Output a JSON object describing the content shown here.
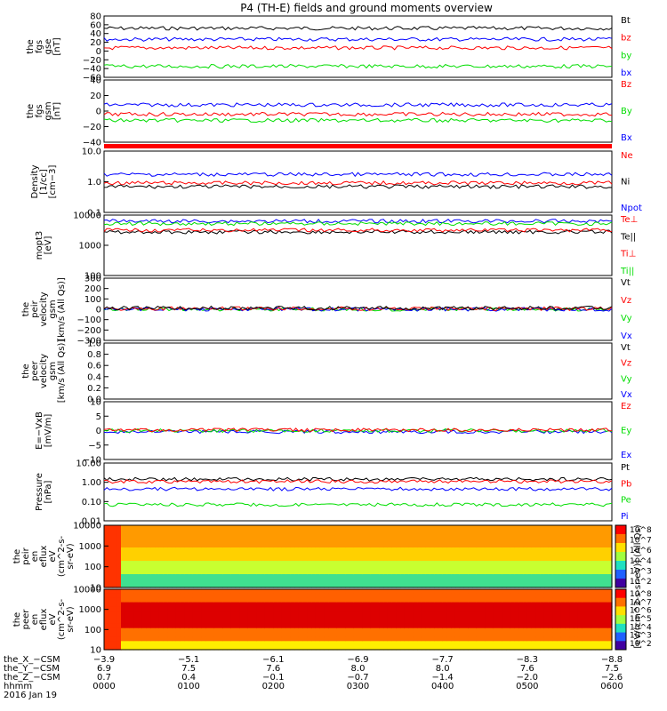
{
  "title": "P4 (TH-E) fields and ground moments overview",
  "colors": {
    "black": "#000000",
    "red": "#ff0000",
    "green": "#00dd00",
    "blue": "#0000ff"
  },
  "chart_data": [
    {
      "type": "line",
      "ylabel": [
        "the",
        "fgs",
        "gse",
        "[nT]"
      ],
      "yticks": [
        "80",
        "60",
        "40",
        "20",
        "0",
        "−20",
        "−40",
        "−60"
      ],
      "legend": [
        {
          "name": "Bt",
          "color": "black"
        },
        {
          "name": "bz",
          "color": "red"
        },
        {
          "name": "by",
          "color": "green"
        },
        {
          "name": "bx",
          "color": "blue"
        }
      ],
      "series": [
        {
          "color": "black",
          "level": 0.2
        },
        {
          "color": "blue",
          "level": 0.38
        },
        {
          "color": "red",
          "level": 0.52
        },
        {
          "color": "green",
          "level": 0.82
        }
      ]
    },
    {
      "type": "line",
      "ylabel": [
        "the",
        "fgs",
        "gsm",
        "[nT]"
      ],
      "yticks": [
        "40",
        "20",
        "0",
        "−20",
        "−40"
      ],
      "legend": [
        {
          "name": "Bz",
          "color": "red"
        },
        {
          "name": "By",
          "color": "green"
        },
        {
          "name": "Bx",
          "color": "blue"
        }
      ],
      "series": [
        {
          "color": "blue",
          "level": 0.4
        },
        {
          "color": "red",
          "level": 0.55
        },
        {
          "color": "green",
          "level": 0.65
        }
      ]
    },
    {
      "type": "line",
      "ylabel": [
        "Density",
        "[1/cc]",
        "[cm−3]"
      ],
      "yticks": [
        "10.0",
        "1.0",
        "0.1"
      ],
      "legend": [
        {
          "name": "Ne",
          "color": "red"
        },
        {
          "name": "Ni",
          "color": "black"
        },
        {
          "name": "Npot",
          "color": "blue"
        }
      ],
      "series": [
        {
          "color": "blue",
          "level": 0.38
        },
        {
          "color": "red",
          "level": 0.52
        },
        {
          "color": "black",
          "level": 0.58
        }
      ]
    },
    {
      "type": "line",
      "ylabel": [
        "mopt3",
        "[eV]"
      ],
      "yticks": [
        "10000",
        "1000",
        "100"
      ],
      "legend": [
        {
          "name": "Te⊥",
          "color": "red"
        },
        {
          "name": "Te||",
          "color": "black"
        },
        {
          "name": "Ti⊥",
          "color": "red"
        },
        {
          "name": "Ti||",
          "color": "green"
        }
      ],
      "series": [
        {
          "color": "blue",
          "level": 0.1
        },
        {
          "color": "green",
          "level": 0.14
        },
        {
          "color": "black",
          "level": 0.28
        },
        {
          "color": "red",
          "level": 0.25
        }
      ]
    },
    {
      "type": "line",
      "ylabel": [
        "the",
        "peir",
        "velocity",
        "gsm",
        "[km/s (All Qs)]"
      ],
      "yticks": [
        "300",
        "200",
        "100",
        "0",
        "−100",
        "−200",
        "−300"
      ],
      "legend": [
        {
          "name": "Vt",
          "color": "black"
        },
        {
          "name": "Vz",
          "color": "red"
        },
        {
          "name": "Vy",
          "color": "green"
        },
        {
          "name": "Vx",
          "color": "blue"
        }
      ],
      "series": [
        {
          "color": "green",
          "level": 0.5
        },
        {
          "color": "blue",
          "level": 0.5
        },
        {
          "color": "red",
          "level": 0.49
        },
        {
          "color": "black",
          "level": 0.48
        }
      ]
    },
    {
      "type": "line",
      "ylabel": [
        "the",
        "peer",
        "velocity",
        "gsm",
        "[km/s (All Qs)]"
      ],
      "yticks": [
        "1.0",
        "0.8",
        "0.6",
        "0.4",
        "0.2",
        "0.0"
      ],
      "legend": [
        {
          "name": "Vt",
          "color": "black"
        },
        {
          "name": "Vz",
          "color": "red"
        },
        {
          "name": "Vy",
          "color": "green"
        },
        {
          "name": "Vx",
          "color": "blue"
        }
      ],
      "series": []
    },
    {
      "type": "line",
      "ylabel": [
        "E=−VxB",
        "[mV/m]"
      ],
      "yticks": [
        "10",
        "5",
        "0",
        "−5",
        "−10"
      ],
      "legend": [
        {
          "name": "Ez",
          "color": "red"
        },
        {
          "name": "Ey",
          "color": "green"
        },
        {
          "name": "Ex",
          "color": "blue"
        }
      ],
      "series": [
        {
          "color": "blue",
          "level": 0.52
        },
        {
          "color": "green",
          "level": 0.5
        },
        {
          "color": "red",
          "level": 0.49
        }
      ]
    },
    {
      "type": "line",
      "ylabel": [
        "Pressure",
        "[nPa]"
      ],
      "yticks": [
        "10.00",
        "1.00",
        "0.10",
        "0.01"
      ],
      "legend": [
        {
          "name": "Pt",
          "color": "black"
        },
        {
          "name": "Pb",
          "color": "red"
        },
        {
          "name": "Pe",
          "color": "green"
        },
        {
          "name": "Pi",
          "color": "blue"
        }
      ],
      "series": [
        {
          "color": "black",
          "level": 0.28
        },
        {
          "color": "red",
          "level": 0.32
        },
        {
          "color": "blue",
          "level": 0.45
        },
        {
          "color": "green",
          "level": 0.72
        }
      ]
    },
    {
      "type": "heatmap",
      "ylabel": [
        "the",
        "peir",
        "en",
        "eflux",
        "eV",
        "(cm^2-s-",
        "sr-eV)"
      ],
      "yticks": [
        "10000",
        "1000",
        "100",
        "10"
      ],
      "colorbar": {
        "ticks": [
          "10^8",
          "10^7",
          "10^6",
          "10^4",
          "10^3",
          "10^2"
        ]
      }
    },
    {
      "type": "heatmap",
      "ylabel": [
        "the",
        "peer",
        "en",
        "eflux",
        "eV",
        "(cm^2-s-",
        "sr-eV)"
      ],
      "yticks": [
        "10000",
        "1000",
        "100",
        "10"
      ],
      "colorbar": {
        "ticks": [
          "10^8",
          "10^7",
          "10^6",
          "10^5",
          "10^4",
          "10^3",
          "10^2"
        ]
      }
    }
  ],
  "colorbar_label": "[eV/(cm^2-s-sr-eV)] (All Qs)",
  "xaxis": {
    "rows": [
      {
        "label": "the_X_−CSM",
        "values": [
          "−3.9",
          "−5.1",
          "−6.1",
          "−6.9",
          "−7.7",
          "−8.3",
          "−8.8"
        ]
      },
      {
        "label": "the_Y_−CSM",
        "values": [
          "6.9",
          "7.5",
          "7.6",
          "8.0",
          "8.0",
          "7.6",
          "7.5"
        ]
      },
      {
        "label": "the_Z_−CSM",
        "values": [
          "0.7",
          "0.4",
          "−0.1",
          "−0.7",
          "−1.4",
          "−2.0",
          "−2.6"
        ]
      },
      {
        "label": "hhmm",
        "values": [
          "0000",
          "0100",
          "0200",
          "0300",
          "0400",
          "0500",
          "0600"
        ]
      }
    ],
    "date": "2016 Jan 19"
  }
}
